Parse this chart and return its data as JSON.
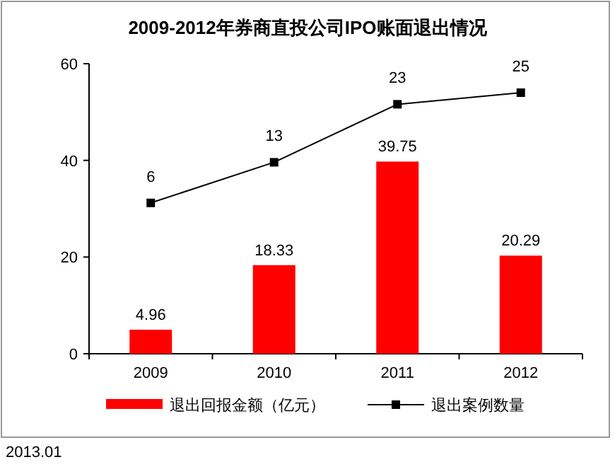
{
  "chart_data": {
    "type": "bar",
    "title": "2009-2012年券商直投公司IPO账面退出情况",
    "categories": [
      "2009",
      "2010",
      "2011",
      "2012"
    ],
    "series": [
      {
        "name": "退出回报金额（亿元）",
        "color": "#ff0000",
        "values": [
          4.96,
          18.33,
          39.75,
          20.29
        ]
      },
      {
        "name": "退出案例数量",
        "type": "line",
        "axis": "y2",
        "color": "#000000",
        "values": [
          6,
          13,
          23,
          25
        ]
      }
    ],
    "ylim": [
      0,
      60
    ],
    "yticks": [
      0,
      20,
      40,
      60
    ],
    "y2lim": [
      -20,
      30
    ],
    "marker": "square",
    "line_style": "solid",
    "data_labels": true,
    "legend": "bottom",
    "annotations": [
      "2013.01"
    ]
  }
}
